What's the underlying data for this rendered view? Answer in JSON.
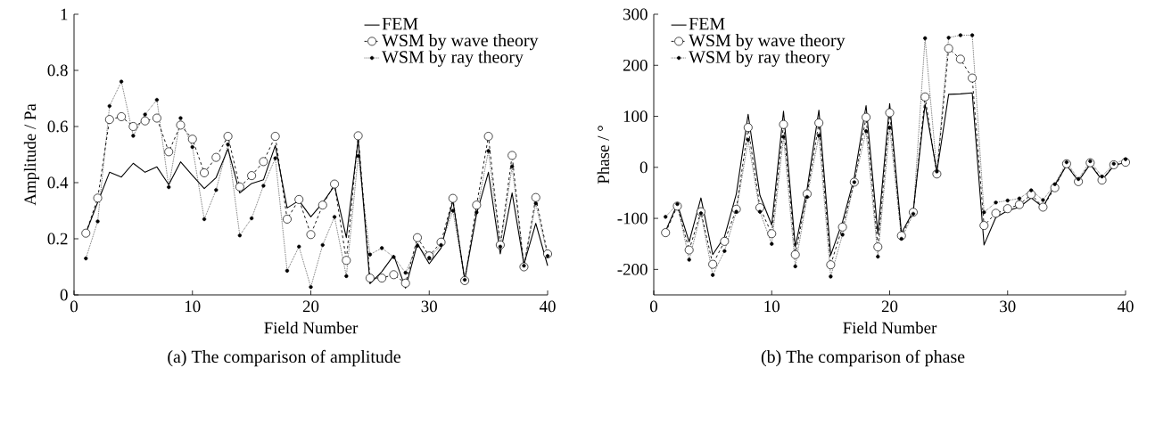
{
  "chart_data": [
    {
      "type": "line",
      "xlabel": "Field Number",
      "ylabel": "Amplitude / Pa",
      "annotations": [
        "(a) The comparison of amplitude"
      ],
      "legend": "top right",
      "grid": false,
      "x": [
        1,
        2,
        3,
        4,
        5,
        6,
        7,
        8,
        9,
        10,
        11,
        12,
        13,
        14,
        15,
        16,
        17,
        18,
        19,
        20,
        21,
        22,
        23,
        24,
        25,
        26,
        27,
        28,
        29,
        30,
        31,
        32,
        33,
        34,
        35,
        36,
        37,
        38,
        39,
        40
      ],
      "xlim": [
        0,
        40
      ],
      "xticks": [
        0,
        10,
        20,
        30,
        40
      ],
      "ylim": [
        0,
        1
      ],
      "yticks": [
        0,
        0.2,
        0.4,
        0.6,
        0.8,
        1
      ],
      "series": [
        {
          "name": "FEM",
          "color": "#000000",
          "marker": "none",
          "line_style": "solid",
          "values": [
            0.22,
            0.33,
            0.437,
            0.42,
            0.469,
            0.437,
            0.456,
            0.393,
            0.474,
            0.426,
            0.379,
            0.418,
            0.52,
            0.363,
            0.397,
            0.41,
            0.532,
            0.31,
            0.336,
            0.278,
            0.328,
            0.389,
            0.204,
            0.553,
            0.04,
            0.083,
            0.141,
            0.024,
            0.183,
            0.111,
            0.167,
            0.336,
            0.054,
            0.289,
            0.437,
            0.146,
            0.363,
            0.109,
            0.255,
            0.104
          ]
        },
        {
          "name": "WSM by wave theory",
          "color": "#000000",
          "marker": "circle",
          "line_style": "dashed",
          "values": [
            0.22,
            0.345,
            0.625,
            0.635,
            0.6,
            0.62,
            0.63,
            0.51,
            0.605,
            0.555,
            0.435,
            0.49,
            0.565,
            0.385,
            0.425,
            0.475,
            0.565,
            0.27,
            0.34,
            0.215,
            0.32,
            0.395,
            0.123,
            0.567,
            0.06,
            0.06,
            0.072,
            0.042,
            0.204,
            0.139,
            0.188,
            0.344,
            0.051,
            0.32,
            0.565,
            0.178,
            0.497,
            0.1,
            0.347,
            0.146
          ]
        },
        {
          "name": "WSM by ray theory",
          "color": "#000000",
          "marker": "circle",
          "line_style": "dotted",
          "values": [
            0.13,
            0.262,
            0.673,
            0.76,
            0.567,
            0.643,
            0.695,
            0.384,
            0.63,
            0.527,
            0.27,
            0.374,
            0.536,
            0.212,
            0.273,
            0.389,
            0.487,
            0.086,
            0.172,
            0.028,
            0.178,
            0.278,
            0.067,
            0.495,
            0.144,
            0.167,
            0.135,
            0.079,
            0.175,
            0.132,
            0.178,
            0.3,
            0.054,
            0.294,
            0.513,
            0.172,
            0.458,
            0.104,
            0.326,
            0.139
          ]
        }
      ]
    },
    {
      "type": "line",
      "xlabel": "Field Number",
      "ylabel": "Phase / °",
      "annotations": [
        "(b) The comparison of phase"
      ],
      "legend": "top left",
      "grid": false,
      "x": [
        1,
        2,
        3,
        4,
        5,
        6,
        7,
        8,
        9,
        10,
        11,
        12,
        13,
        14,
        15,
        16,
        17,
        18,
        19,
        20,
        21,
        22,
        23,
        24,
        25,
        26,
        27,
        28,
        29,
        30,
        31,
        32,
        33,
        34,
        35,
        36,
        37,
        38,
        39,
        40
      ],
      "xlim": [
        0,
        40
      ],
      "xticks": [
        0,
        10,
        20,
        30,
        40
      ],
      "ylim": [
        -250,
        300
      ],
      "yticks": [
        -200,
        -100,
        0,
        100,
        200,
        300
      ],
      "series": [
        {
          "name": "FEM",
          "color": "#000000",
          "marker": "none",
          "line_style": "solid",
          "values": [
            -125,
            -72,
            -146,
            -60,
            -171,
            -136,
            -52,
            104,
            -55,
            -113,
            110,
            -156,
            -43,
            112,
            -172,
            -107,
            -20,
            121,
            -130,
            125,
            -129,
            -86,
            124,
            -9,
            143,
            144,
            146,
            -152,
            -98,
            -85,
            -78,
            -60,
            -78,
            -35,
            4,
            -27,
            6,
            -25,
            3,
            10
          ]
        },
        {
          "name": "WSM by wave theory",
          "color": "#000000",
          "marker": "circle",
          "line_style": "dashed",
          "values": [
            -128,
            -76,
            -162,
            -87,
            -190,
            -145,
            -82,
            78,
            -79,
            -130,
            84,
            -171,
            -52,
            87,
            -191,
            -117,
            -29,
            98,
            -156,
            107,
            -134,
            -88,
            138,
            -13,
            233,
            212,
            175,
            -114,
            -90,
            -81,
            -73,
            -53,
            -78,
            -40,
            7,
            -28,
            9,
            -25,
            5,
            10
          ]
        },
        {
          "name": "WSM by ray theory",
          "color": "#000000",
          "marker": "circle",
          "line_style": "dotted",
          "values": [
            -97,
            -72,
            -181,
            -90,
            -211,
            -164,
            -87,
            54,
            -87,
            -150,
            60,
            -194,
            -58,
            62,
            -214,
            -132,
            -29,
            71,
            -175,
            78,
            -140,
            -91,
            253,
            -8,
            254,
            259,
            259,
            -88,
            -69,
            -65,
            -61,
            -45,
            -64,
            -33,
            10,
            -23,
            12,
            -18,
            7,
            16
          ]
        }
      ]
    }
  ]
}
